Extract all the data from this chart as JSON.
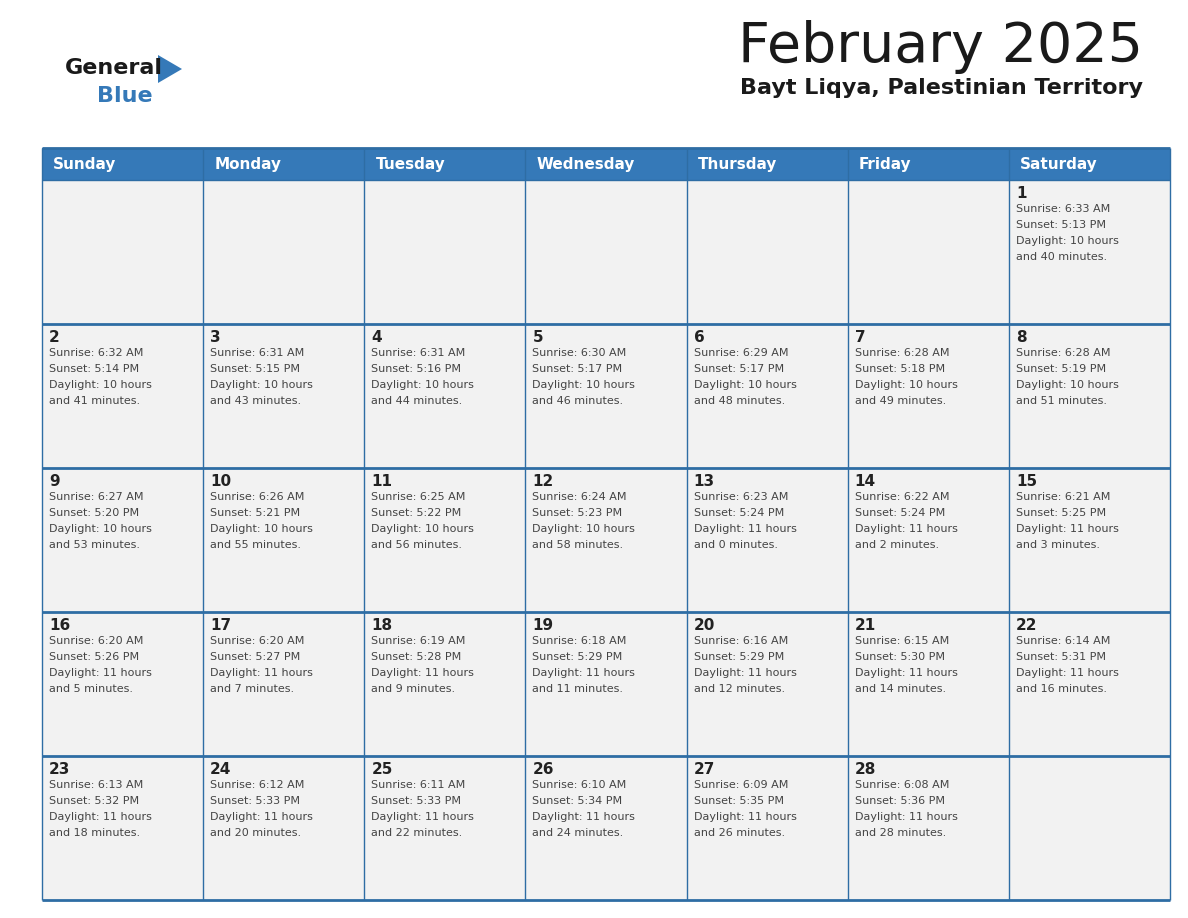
{
  "title": "February 2025",
  "subtitle": "Bayt Liqya, Palestinian Territory",
  "header_color": "#3579B8",
  "header_text_color": "#FFFFFF",
  "day_names": [
    "Sunday",
    "Monday",
    "Tuesday",
    "Wednesday",
    "Thursday",
    "Friday",
    "Saturday"
  ],
  "background_color": "#FFFFFF",
  "cell_bg_color": "#F2F2F2",
  "header_border_color": "#2E6DA4",
  "day_num_color": "#222222",
  "info_text_color": "#444444",
  "title_color": "#1A1A1A",
  "subtitle_color": "#1A1A1A",
  "logo_general_color": "#1A1A1A",
  "logo_blue_color": "#3579B8",
  "weeks": [
    [
      {
        "day": null,
        "info": null
      },
      {
        "day": null,
        "info": null
      },
      {
        "day": null,
        "info": null
      },
      {
        "day": null,
        "info": null
      },
      {
        "day": null,
        "info": null
      },
      {
        "day": null,
        "info": null
      },
      {
        "day": 1,
        "info": "Sunrise: 6:33 AM\nSunset: 5:13 PM\nDaylight: 10 hours\nand 40 minutes."
      }
    ],
    [
      {
        "day": 2,
        "info": "Sunrise: 6:32 AM\nSunset: 5:14 PM\nDaylight: 10 hours\nand 41 minutes."
      },
      {
        "day": 3,
        "info": "Sunrise: 6:31 AM\nSunset: 5:15 PM\nDaylight: 10 hours\nand 43 minutes."
      },
      {
        "day": 4,
        "info": "Sunrise: 6:31 AM\nSunset: 5:16 PM\nDaylight: 10 hours\nand 44 minutes."
      },
      {
        "day": 5,
        "info": "Sunrise: 6:30 AM\nSunset: 5:17 PM\nDaylight: 10 hours\nand 46 minutes."
      },
      {
        "day": 6,
        "info": "Sunrise: 6:29 AM\nSunset: 5:17 PM\nDaylight: 10 hours\nand 48 minutes."
      },
      {
        "day": 7,
        "info": "Sunrise: 6:28 AM\nSunset: 5:18 PM\nDaylight: 10 hours\nand 49 minutes."
      },
      {
        "day": 8,
        "info": "Sunrise: 6:28 AM\nSunset: 5:19 PM\nDaylight: 10 hours\nand 51 minutes."
      }
    ],
    [
      {
        "day": 9,
        "info": "Sunrise: 6:27 AM\nSunset: 5:20 PM\nDaylight: 10 hours\nand 53 minutes."
      },
      {
        "day": 10,
        "info": "Sunrise: 6:26 AM\nSunset: 5:21 PM\nDaylight: 10 hours\nand 55 minutes."
      },
      {
        "day": 11,
        "info": "Sunrise: 6:25 AM\nSunset: 5:22 PM\nDaylight: 10 hours\nand 56 minutes."
      },
      {
        "day": 12,
        "info": "Sunrise: 6:24 AM\nSunset: 5:23 PM\nDaylight: 10 hours\nand 58 minutes."
      },
      {
        "day": 13,
        "info": "Sunrise: 6:23 AM\nSunset: 5:24 PM\nDaylight: 11 hours\nand 0 minutes."
      },
      {
        "day": 14,
        "info": "Sunrise: 6:22 AM\nSunset: 5:24 PM\nDaylight: 11 hours\nand 2 minutes."
      },
      {
        "day": 15,
        "info": "Sunrise: 6:21 AM\nSunset: 5:25 PM\nDaylight: 11 hours\nand 3 minutes."
      }
    ],
    [
      {
        "day": 16,
        "info": "Sunrise: 6:20 AM\nSunset: 5:26 PM\nDaylight: 11 hours\nand 5 minutes."
      },
      {
        "day": 17,
        "info": "Sunrise: 6:20 AM\nSunset: 5:27 PM\nDaylight: 11 hours\nand 7 minutes."
      },
      {
        "day": 18,
        "info": "Sunrise: 6:19 AM\nSunset: 5:28 PM\nDaylight: 11 hours\nand 9 minutes."
      },
      {
        "day": 19,
        "info": "Sunrise: 6:18 AM\nSunset: 5:29 PM\nDaylight: 11 hours\nand 11 minutes."
      },
      {
        "day": 20,
        "info": "Sunrise: 6:16 AM\nSunset: 5:29 PM\nDaylight: 11 hours\nand 12 minutes."
      },
      {
        "day": 21,
        "info": "Sunrise: 6:15 AM\nSunset: 5:30 PM\nDaylight: 11 hours\nand 14 minutes."
      },
      {
        "day": 22,
        "info": "Sunrise: 6:14 AM\nSunset: 5:31 PM\nDaylight: 11 hours\nand 16 minutes."
      }
    ],
    [
      {
        "day": 23,
        "info": "Sunrise: 6:13 AM\nSunset: 5:32 PM\nDaylight: 11 hours\nand 18 minutes."
      },
      {
        "day": 24,
        "info": "Sunrise: 6:12 AM\nSunset: 5:33 PM\nDaylight: 11 hours\nand 20 minutes."
      },
      {
        "day": 25,
        "info": "Sunrise: 6:11 AM\nSunset: 5:33 PM\nDaylight: 11 hours\nand 22 minutes."
      },
      {
        "day": 26,
        "info": "Sunrise: 6:10 AM\nSunset: 5:34 PM\nDaylight: 11 hours\nand 24 minutes."
      },
      {
        "day": 27,
        "info": "Sunrise: 6:09 AM\nSunset: 5:35 PM\nDaylight: 11 hours\nand 26 minutes."
      },
      {
        "day": 28,
        "info": "Sunrise: 6:08 AM\nSunset: 5:36 PM\nDaylight: 11 hours\nand 28 minutes."
      },
      {
        "day": null,
        "info": null
      }
    ]
  ]
}
